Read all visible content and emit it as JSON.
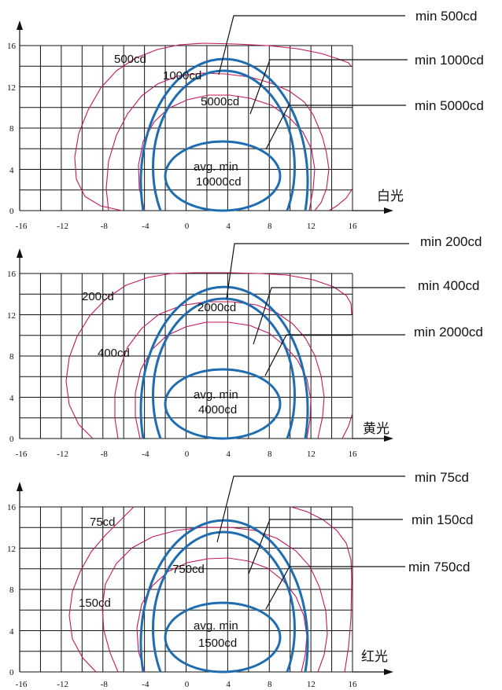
{
  "colors": {
    "min_contour": "#1f6db0",
    "measured_contour": "#c2185b",
    "grid": "#111111"
  },
  "axes": {
    "x_ticks": [
      "-16",
      "-12",
      "-8",
      "-4",
      "0",
      "4",
      "8",
      "12",
      "16"
    ],
    "y_ticks": [
      "0",
      "4",
      "8",
      "12",
      "16"
    ]
  },
  "panels": [
    {
      "light_label": "白光",
      "callouts": [
        "min 500cd",
        "min 1000cd",
        "min 5000cd"
      ],
      "avg_line1": "avg. min",
      "avg_line2": "10000cd",
      "measured_labels": [
        "500cd",
        "1000cd",
        "5000cd"
      ]
    },
    {
      "light_label": "黄光",
      "callouts": [
        "min 200cd",
        "min 400cd",
        "min 2000cd"
      ],
      "avg_line1": "avg. min",
      "avg_line2": "4000cd",
      "measured_labels": [
        "200cd",
        "400cd",
        "2000cd"
      ]
    },
    {
      "light_label": "红光",
      "callouts": [
        "min 75cd",
        "min 150cd",
        "min 750cd"
      ],
      "avg_line1": "avg. min",
      "avg_line2": "1500cd",
      "measured_labels": [
        "75cd",
        "150cd",
        "750cd"
      ]
    }
  ]
}
